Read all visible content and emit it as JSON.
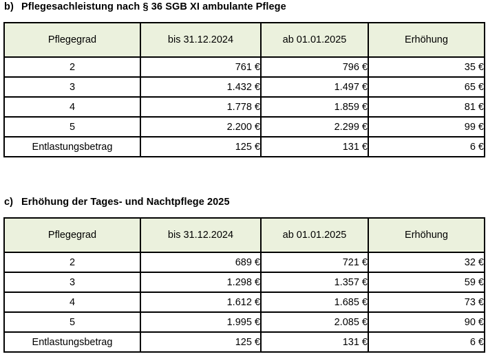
{
  "colors": {
    "header_background": "#ebf1dd",
    "border": "#000000",
    "text": "#000000"
  },
  "section_b": {
    "letter": "b)",
    "title": "Pflegesachleistung nach § 36 SGB XI ambulante Pflege",
    "headers": [
      "Pflegegrad",
      "bis 31.12.2024",
      "ab 01.01.2025",
      "Erhöhung"
    ],
    "rows": [
      {
        "grade": "2",
        "old": "761 €",
        "new": "796 €",
        "increase": "35 €"
      },
      {
        "grade": "3",
        "old": "1.432 €",
        "new": "1.497 €",
        "increase": "65 €"
      },
      {
        "grade": "4",
        "old": "1.778 €",
        "new": "1.859 €",
        "increase": "81 €"
      },
      {
        "grade": "5",
        "old": "2.200 €",
        "new": "2.299 €",
        "increase": "99 €"
      },
      {
        "grade": "Entlastungsbetrag",
        "old": "125 €",
        "new": "131 €",
        "increase": "6 €"
      }
    ]
  },
  "section_c": {
    "letter": "c)",
    "title": "Erhöhung der Tages- und Nachtpflege 2025",
    "headers": [
      "Pflegegrad",
      "bis 31.12.2024",
      "ab 01.01.2025",
      "Erhöhung"
    ],
    "rows": [
      {
        "grade": "2",
        "old": "689 €",
        "new": "721 €",
        "increase": "32 €"
      },
      {
        "grade": "3",
        "old": "1.298 €",
        "new": "1.357 €",
        "increase": "59 €"
      },
      {
        "grade": "4",
        "old": "1.612 €",
        "new": "1.685 €",
        "increase": "73 €"
      },
      {
        "grade": "5",
        "old": "1.995 €",
        "new": "2.085 €",
        "increase": "90 €"
      },
      {
        "grade": "Entlastungsbetrag",
        "old": "125 €",
        "new": "131 €",
        "increase": "6 €"
      }
    ]
  }
}
